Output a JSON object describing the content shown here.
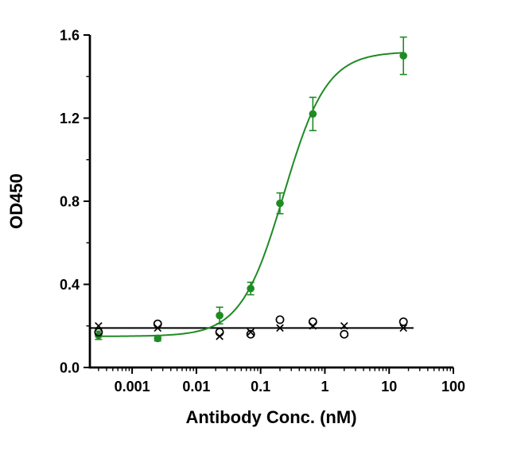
{
  "figure": {
    "background": "#ffffff",
    "axis_color": "#000000"
  },
  "chart_data": {
    "type": "scatter",
    "title": "",
    "xlabel": "Antibody Conc. (nM)",
    "ylabel": "OD450",
    "x_scale": "log10",
    "x_range": [
      0.00022,
      100
    ],
    "y_range": [
      0,
      1.6
    ],
    "x_major_ticks": [
      0.001,
      0.01,
      0.1,
      1,
      10,
      100
    ],
    "x_tick_labels": [
      "0.001",
      "0.01",
      "0.1",
      "1",
      "10",
      "100"
    ],
    "y_major_ticks": [
      0,
      0.4,
      0.8,
      1.2,
      1.6
    ],
    "y_tick_labels": [
      "0.0",
      "0.4",
      "0.8",
      "1.2",
      "1.6"
    ],
    "y_minor_step": 0.2,
    "grid": false,
    "legend": "none",
    "baseline": {
      "y": 0.19,
      "x_start": 0.00022,
      "x_end": 24,
      "color": "#000000"
    },
    "series": [
      {
        "name": "green-filled-circles",
        "marker": "filled-circle",
        "color": "#1f8b24",
        "x": [
          0.0003,
          0.0025,
          0.023,
          0.07,
          0.2,
          0.65,
          16.7
        ],
        "y": [
          0.155,
          0.14,
          0.25,
          0.38,
          0.79,
          1.22,
          1.5
        ],
        "yerr": [
          0.02,
          0.012,
          0.04,
          0.03,
          0.05,
          0.08,
          0.09
        ],
        "fit": {
          "model": "4PL",
          "bottom": 0.15,
          "top": 1.52,
          "ec50": 0.23,
          "hill": 1.3,
          "curve_x": [
            0.00028,
            16.7
          ]
        }
      },
      {
        "name": "black-open-circles",
        "marker": "open-circle",
        "color": "#000000",
        "x": [
          0.0003,
          0.0025,
          0.023,
          0.07,
          0.2,
          0.65,
          2,
          16.7
        ],
        "y": [
          0.17,
          0.21,
          0.17,
          0.16,
          0.23,
          0.22,
          0.16,
          0.22
        ]
      },
      {
        "name": "black-x-markers",
        "marker": "x",
        "color": "#000000",
        "x": [
          0.0003,
          0.0025,
          0.023,
          0.07,
          0.2,
          0.65,
          2,
          16.7
        ],
        "y": [
          0.2,
          0.19,
          0.15,
          0.17,
          0.19,
          0.2,
          0.2,
          0.19
        ]
      }
    ]
  }
}
